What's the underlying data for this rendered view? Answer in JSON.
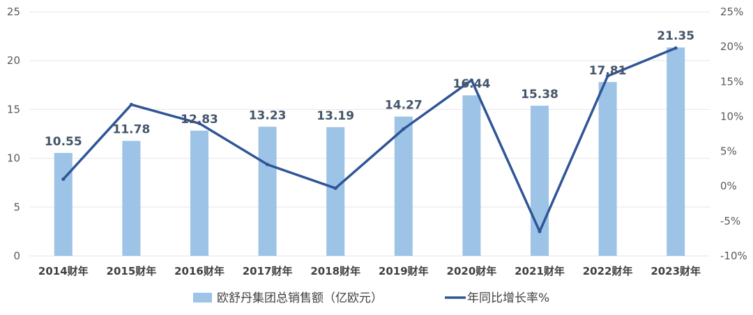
{
  "chart_data": {
    "type": "bar",
    "categories": [
      "2014财年",
      "2015财年",
      "2016财年",
      "2017财年",
      "2018财年",
      "2019财年",
      "2020财年",
      "2021财年",
      "2022财年",
      "2023财年"
    ],
    "series": [
      {
        "name": "欧舒丹集团总销售额（亿欧元）",
        "type": "bar",
        "axis": "left",
        "values": [
          10.55,
          11.78,
          12.83,
          13.23,
          13.19,
          14.27,
          16.44,
          15.38,
          17.81,
          21.35
        ],
        "data_labels": [
          "10.55",
          "11.78",
          "12.83",
          "13.23",
          "13.19",
          "14.27",
          "16.44",
          "15.38",
          "17.81",
          "21.35"
        ],
        "color": "#9dc3e6"
      },
      {
        "name": "年同比增长率%",
        "type": "line",
        "axis": "right",
        "values": [
          1.0,
          11.7,
          9.0,
          3.1,
          -0.3,
          8.2,
          15.2,
          -6.5,
          15.8,
          19.8
        ],
        "color": "#2f5597"
      }
    ],
    "y_left": {
      "lim": [
        0,
        25
      ],
      "ticks": [
        0,
        5,
        10,
        15,
        20,
        25
      ],
      "tick_labels": [
        "0",
        "5",
        "10",
        "15",
        "20",
        "25"
      ]
    },
    "y_right": {
      "lim": [
        -10,
        25
      ],
      "ticks": [
        -10,
        -5,
        0,
        5,
        10,
        15,
        20,
        25
      ],
      "tick_labels": [
        "-10%",
        "-5%",
        "0%",
        "5%",
        "10%",
        "15%",
        "20%",
        "25%"
      ]
    },
    "grid": true,
    "legend_position": "bottom",
    "title": "",
    "xlabel": "",
    "ylabel": ""
  },
  "colors": {
    "bar": "#9dc3e6",
    "line": "#2f5597",
    "grid": "#e6e6e6",
    "data_label": "#44546a"
  }
}
